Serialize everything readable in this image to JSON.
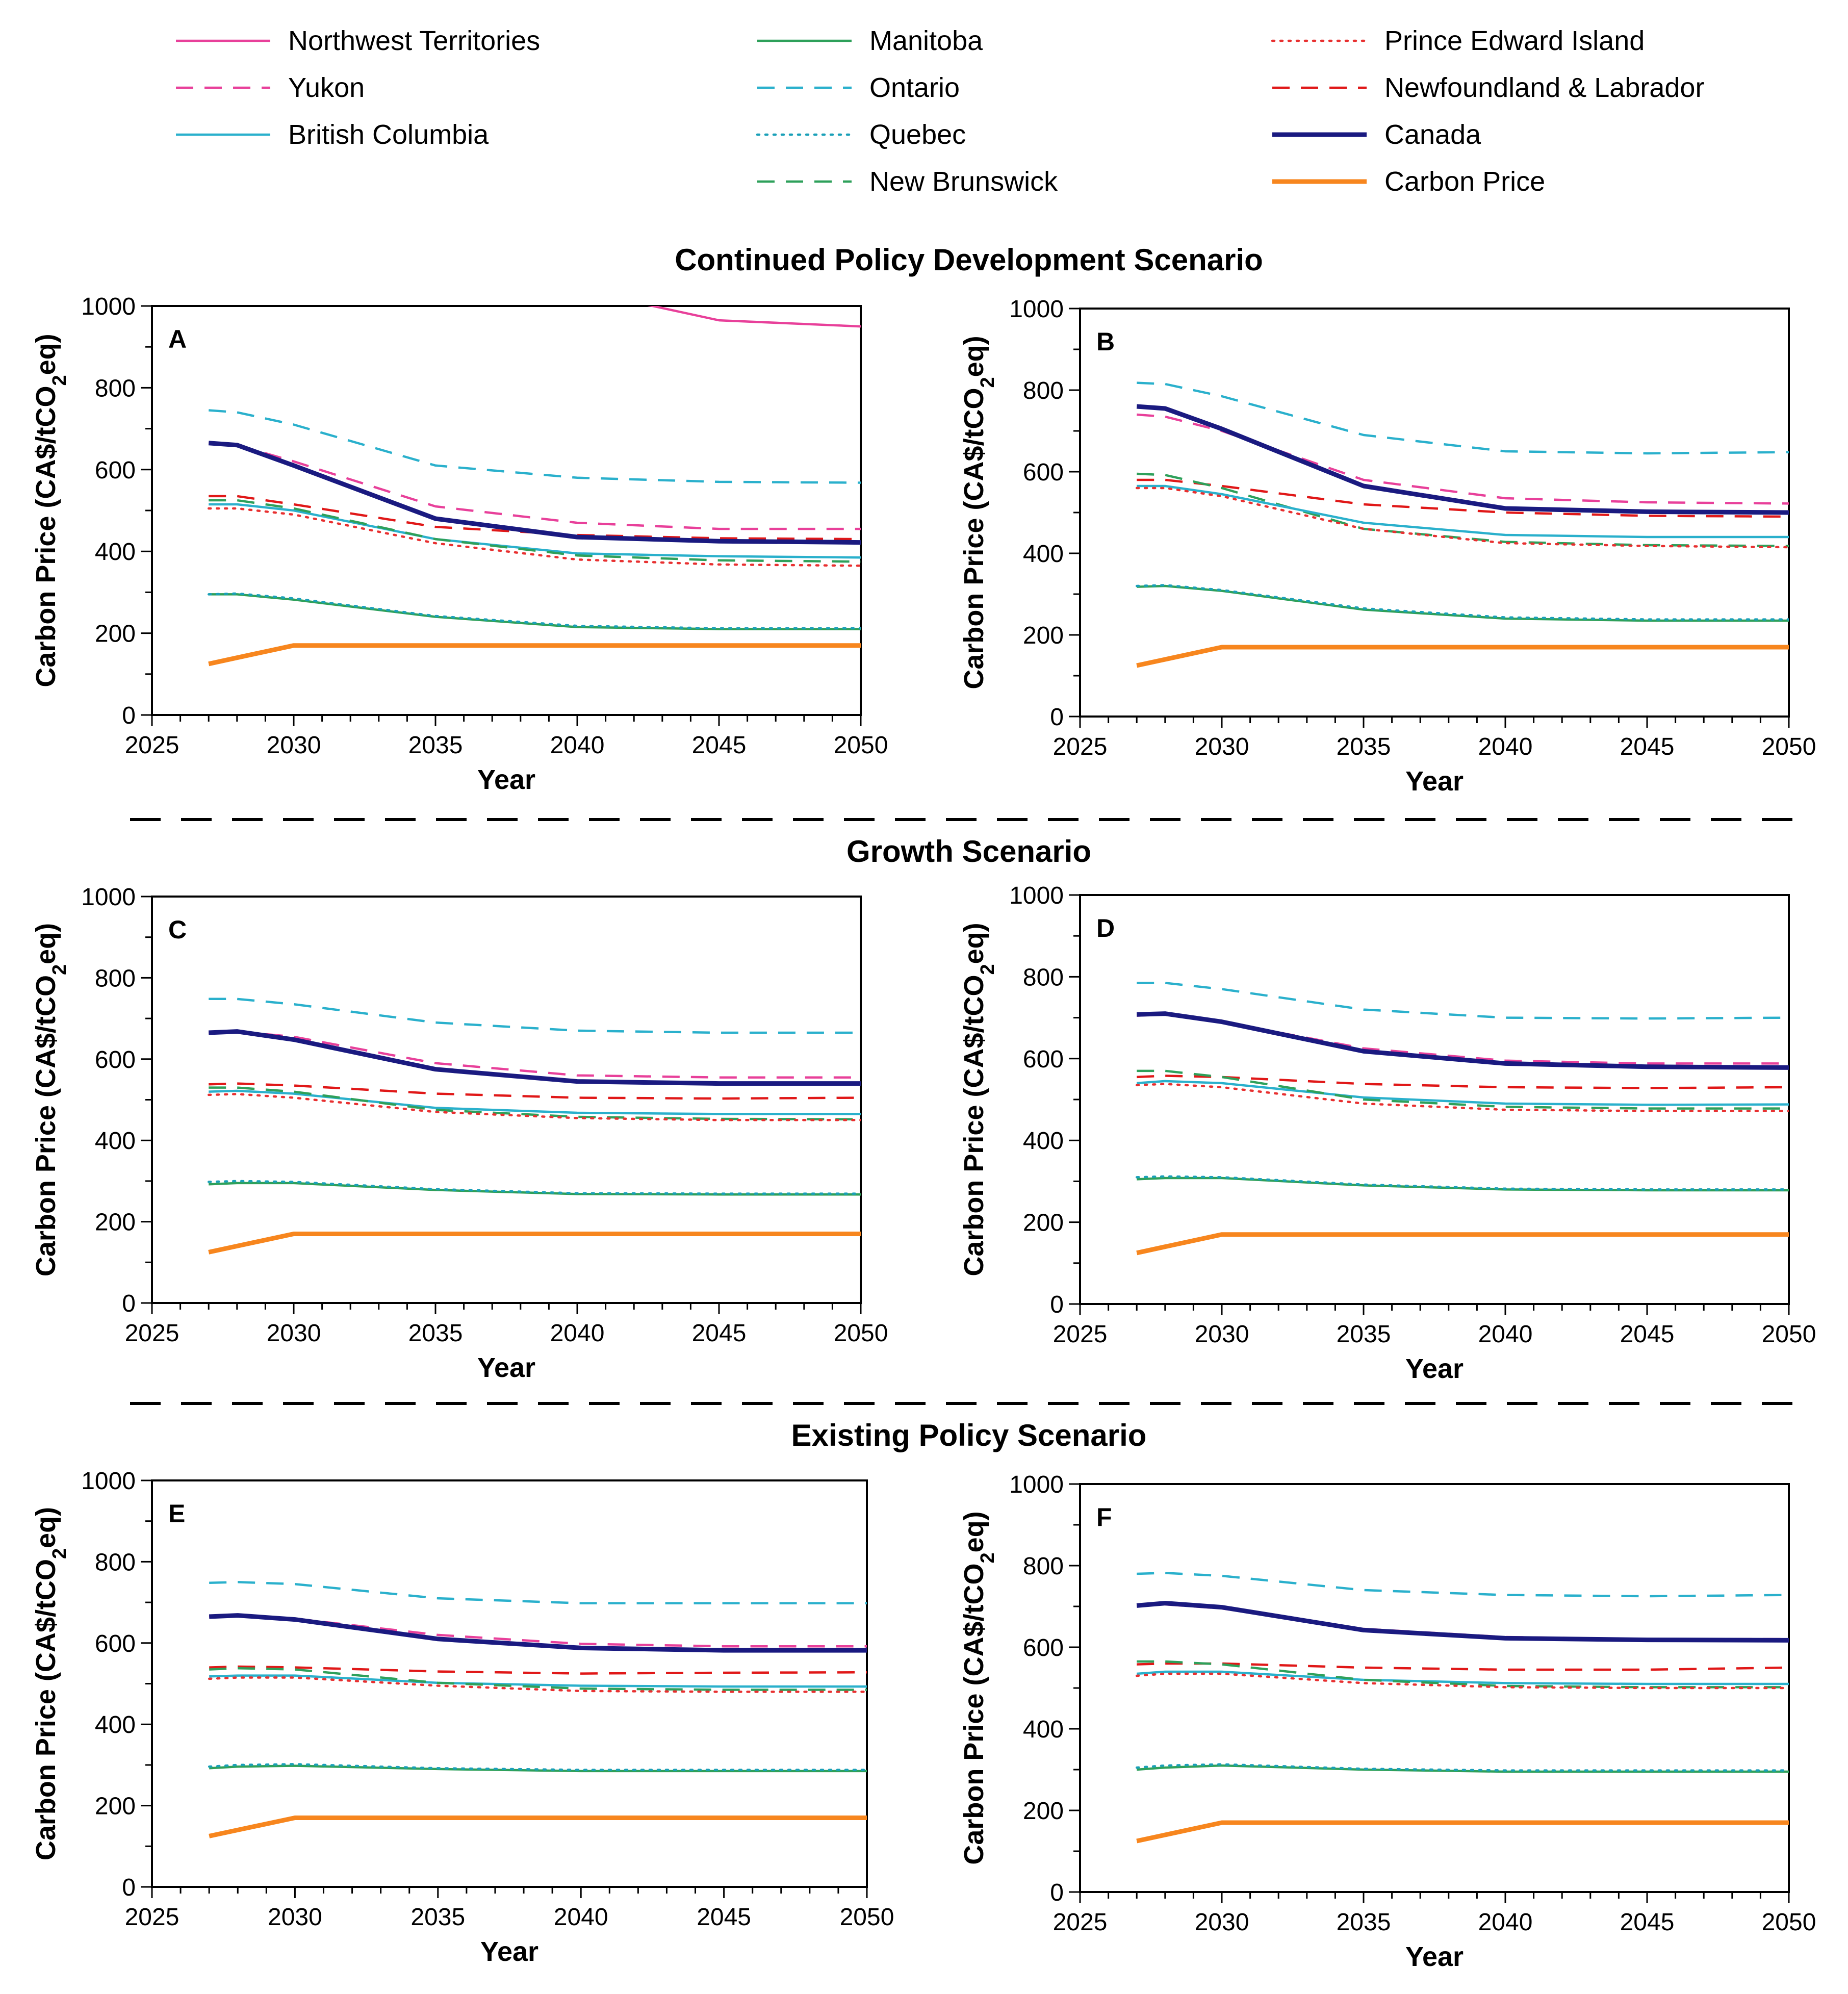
{
  "legend": [
    {
      "name": "Northwest Territories",
      "color": "#e8409a",
      "dash": "solid",
      "width": "thin"
    },
    {
      "name": "Yukon",
      "color": "#e8409a",
      "dash": "dashed",
      "width": "thin"
    },
    {
      "name": "British Columbia",
      "color": "#2ab0cc",
      "dash": "solid",
      "width": "thin"
    },
    {
      "name": "Manitoba",
      "color": "#2ea05a",
      "dash": "solid",
      "width": "thin"
    },
    {
      "name": "Ontario",
      "color": "#2ab0cc",
      "dash": "dashed",
      "width": "thin"
    },
    {
      "name": "Quebec",
      "color": "#1aa0b8",
      "dash": "dotted",
      "width": "thin"
    },
    {
      "name": "New Brunswick",
      "color": "#2ea05a",
      "dash": "dashed",
      "width": "thin"
    },
    {
      "name": "Prince Edward Island",
      "color": "#e83030",
      "dash": "dotted",
      "width": "thin"
    },
    {
      "name": "Newfoundland & Labrador",
      "color": "#e01818",
      "dash": "dashed",
      "width": "thin"
    },
    {
      "name": "Canada",
      "color": "#1a1a80",
      "dash": "solid",
      "width": "thick"
    },
    {
      "name": "Carbon Price",
      "color": "#f7861e",
      "dash": "solid",
      "width": "thick"
    }
  ],
  "scenario_titles": [
    "Continued Policy Development Scenario",
    "Growth Scenario",
    "Existing Policy Scenario"
  ],
  "axis": {
    "ylabel": "Carbon Price (CA$/tCO2eq)",
    "xlabel": "Year"
  },
  "chart_data": [
    {
      "panel": "A",
      "type": "line",
      "xlabel": "Year",
      "ylabel": "Carbon Price (CA$/tCO2eq)",
      "xlim": [
        2025,
        2050
      ],
      "ylim": [
        0,
        1000
      ],
      "x": [
        2027,
        2028,
        2030,
        2035,
        2040,
        2045,
        2050
      ],
      "series": [
        {
          "name": "Northwest Territories",
          "values": [
            null,
            null,
            null,
            null,
            null,
            965,
            950
          ]
        },
        {
          "name": "Yukon",
          "values": [
            665,
            660,
            620,
            510,
            470,
            455,
            455
          ]
        },
        {
          "name": "Ontario",
          "values": [
            745,
            740,
            710,
            610,
            580,
            570,
            568
          ]
        },
        {
          "name": "Canada",
          "values": [
            665,
            660,
            610,
            480,
            435,
            425,
            422
          ]
        },
        {
          "name": "Newfoundland & Labrador",
          "values": [
            535,
            535,
            515,
            460,
            440,
            432,
            430
          ]
        },
        {
          "name": "British Columbia",
          "values": [
            515,
            515,
            500,
            430,
            395,
            388,
            385
          ]
        },
        {
          "name": "New Brunswick",
          "values": [
            525,
            525,
            505,
            430,
            390,
            378,
            375
          ]
        },
        {
          "name": "Prince Edward Island",
          "values": [
            505,
            505,
            490,
            420,
            380,
            368,
            365
          ]
        },
        {
          "name": "Manitoba",
          "values": [
            295,
            295,
            282,
            240,
            215,
            210,
            210
          ]
        },
        {
          "name": "Quebec",
          "values": [
            295,
            297,
            285,
            242,
            218,
            212,
            212
          ]
        },
        {
          "name": "Carbon Price",
          "values": [
            125,
            140,
            170,
            170,
            170,
            170,
            170
          ]
        }
      ]
    },
    {
      "panel": "B",
      "type": "line",
      "xlabel": "Year",
      "ylabel": "Carbon Price (CA$/tCO2eq)",
      "xlim": [
        2025,
        2050
      ],
      "ylim": [
        0,
        1000
      ],
      "x": [
        2027,
        2028,
        2030,
        2035,
        2040,
        2045,
        2050
      ],
      "series": [
        {
          "name": "Ontario",
          "values": [
            818,
            815,
            785,
            690,
            650,
            645,
            648
          ]
        },
        {
          "name": "Yukon",
          "values": [
            740,
            735,
            700,
            580,
            535,
            525,
            522
          ]
        },
        {
          "name": "Canada",
          "values": [
            760,
            755,
            705,
            565,
            510,
            502,
            500
          ]
        },
        {
          "name": "Newfoundland & Labrador",
          "values": [
            580,
            580,
            565,
            520,
            500,
            492,
            490
          ]
        },
        {
          "name": "New Brunswick",
          "values": [
            595,
            592,
            560,
            460,
            428,
            420,
            418
          ]
        },
        {
          "name": "British Columbia",
          "values": [
            565,
            565,
            545,
            475,
            445,
            440,
            440
          ]
        },
        {
          "name": "Prince Edward Island",
          "values": [
            560,
            560,
            540,
            460,
            425,
            418,
            415
          ]
        },
        {
          "name": "Manitoba",
          "values": [
            318,
            320,
            308,
            262,
            240,
            235,
            235
          ]
        },
        {
          "name": "Quebec",
          "values": [
            320,
            322,
            310,
            265,
            243,
            238,
            238
          ]
        },
        {
          "name": "Carbon Price",
          "values": [
            125,
            140,
            170,
            170,
            170,
            170,
            170
          ]
        }
      ]
    },
    {
      "panel": "C",
      "type": "line",
      "xlabel": "Year",
      "ylabel": "Carbon Price (CA$/tCO2eq)",
      "xlim": [
        2025,
        2050
      ],
      "ylim": [
        0,
        1000
      ],
      "x": [
        2027,
        2028,
        2030,
        2035,
        2040,
        2045,
        2050
      ],
      "series": [
        {
          "name": "Ontario",
          "values": [
            748,
            748,
            735,
            690,
            670,
            665,
            665
          ]
        },
        {
          "name": "Yukon",
          "values": [
            665,
            668,
            655,
            590,
            560,
            555,
            555
          ]
        },
        {
          "name": "Canada",
          "values": [
            665,
            668,
            648,
            575,
            545,
            540,
            540
          ]
        },
        {
          "name": "Newfoundland & Labrador",
          "values": [
            538,
            540,
            535,
            515,
            505,
            503,
            505
          ]
        },
        {
          "name": "British Columbia",
          "values": [
            520,
            522,
            515,
            480,
            468,
            465,
            465
          ]
        },
        {
          "name": "New Brunswick",
          "values": [
            530,
            530,
            520,
            475,
            458,
            453,
            452
          ]
        },
        {
          "name": "Prince Edward Island",
          "values": [
            512,
            514,
            505,
            470,
            455,
            450,
            450
          ]
        },
        {
          "name": "Manitoba",
          "values": [
            292,
            295,
            295,
            278,
            268,
            267,
            267
          ]
        },
        {
          "name": "Quebec",
          "values": [
            298,
            300,
            298,
            280,
            270,
            269,
            269
          ]
        },
        {
          "name": "Carbon Price",
          "values": [
            125,
            140,
            170,
            170,
            170,
            170,
            170
          ]
        }
      ]
    },
    {
      "panel": "D",
      "type": "line",
      "xlabel": "Year",
      "ylabel": "Carbon Price (CA$/tCO2eq)",
      "xlim": [
        2025,
        2050
      ],
      "ylim": [
        0,
        1000
      ],
      "x": [
        2027,
        2028,
        2030,
        2035,
        2040,
        2045,
        2050
      ],
      "series": [
        {
          "name": "Ontario",
          "values": [
            785,
            785,
            770,
            720,
            700,
            698,
            700
          ]
        },
        {
          "name": "Yukon",
          "values": [
            705,
            708,
            690,
            625,
            595,
            588,
            588
          ]
        },
        {
          "name": "Canada",
          "values": [
            708,
            710,
            690,
            618,
            588,
            580,
            578
          ]
        },
        {
          "name": "Newfoundland & Labrador",
          "values": [
            555,
            558,
            555,
            538,
            530,
            528,
            530
          ]
        },
        {
          "name": "British Columbia",
          "values": [
            540,
            545,
            540,
            505,
            490,
            487,
            488
          ]
        },
        {
          "name": "New Brunswick",
          "values": [
            570,
            570,
            555,
            500,
            482,
            478,
            478
          ]
        },
        {
          "name": "Prince Edward Island",
          "values": [
            535,
            538,
            530,
            490,
            475,
            472,
            472
          ]
        },
        {
          "name": "Manitoba",
          "values": [
            305,
            308,
            308,
            290,
            280,
            278,
            278
          ]
        },
        {
          "name": "Quebec",
          "values": [
            310,
            312,
            310,
            292,
            282,
            280,
            280
          ]
        },
        {
          "name": "Carbon Price",
          "values": [
            125,
            140,
            170,
            170,
            170,
            170,
            170
          ]
        }
      ]
    },
    {
      "panel": "E",
      "type": "line",
      "xlabel": "Year",
      "ylabel": "Carbon Price (CA$/tCO2eq)",
      "xlim": [
        2025,
        2050
      ],
      "ylim": [
        0,
        1000
      ],
      "x": [
        2027,
        2028,
        2030,
        2035,
        2040,
        2045,
        2050
      ],
      "series": [
        {
          "name": "Ontario",
          "values": [
            748,
            750,
            745,
            710,
            698,
            698,
            698
          ]
        },
        {
          "name": "Yukon",
          "values": [
            665,
            668,
            660,
            620,
            598,
            592,
            592
          ]
        },
        {
          "name": "Canada",
          "values": [
            665,
            668,
            658,
            610,
            588,
            582,
            582
          ]
        },
        {
          "name": "Newfoundland & Labrador",
          "values": [
            540,
            542,
            540,
            530,
            525,
            527,
            528
          ]
        },
        {
          "name": "British Columbia",
          "values": [
            518,
            520,
            520,
            502,
            495,
            493,
            493
          ]
        },
        {
          "name": "New Brunswick",
          "values": [
            535,
            538,
            535,
            502,
            488,
            485,
            485
          ]
        },
        {
          "name": "Prince Edward Island",
          "values": [
            512,
            515,
            515,
            495,
            482,
            480,
            480
          ]
        },
        {
          "name": "Manitoba",
          "values": [
            292,
            296,
            298,
            290,
            285,
            285,
            285
          ]
        },
        {
          "name": "Quebec",
          "values": [
            296,
            300,
            302,
            292,
            288,
            288,
            288
          ]
        },
        {
          "name": "Carbon Price",
          "values": [
            125,
            140,
            170,
            170,
            170,
            170,
            170
          ]
        }
      ]
    },
    {
      "panel": "F",
      "type": "line",
      "xlabel": "Year",
      "ylabel": "Carbon Price (CA$/tCO2eq)",
      "xlim": [
        2025,
        2050
      ],
      "ylim": [
        0,
        1000
      ],
      "x": [
        2027,
        2028,
        2030,
        2035,
        2040,
        2045,
        2050
      ],
      "series": [
        {
          "name": "Ontario",
          "values": [
            780,
            782,
            775,
            740,
            728,
            725,
            728
          ]
        },
        {
          "name": "Yukon",
          "values": [
            702,
            705,
            695,
            645,
            625,
            620,
            620
          ]
        },
        {
          "name": "Canada",
          "values": [
            702,
            708,
            698,
            642,
            622,
            618,
            617
          ]
        },
        {
          "name": "Newfoundland & Labrador",
          "values": [
            558,
            560,
            560,
            550,
            545,
            545,
            550
          ]
        },
        {
          "name": "British Columbia",
          "values": [
            535,
            540,
            540,
            520,
            512,
            510,
            510
          ]
        },
        {
          "name": "New Brunswick",
          "values": [
            565,
            565,
            558,
            520,
            505,
            502,
            502
          ]
        },
        {
          "name": "Prince Edward Island",
          "values": [
            530,
            535,
            535,
            512,
            502,
            500,
            500
          ]
        },
        {
          "name": "Manitoba",
          "values": [
            300,
            305,
            310,
            300,
            295,
            295,
            295
          ]
        },
        {
          "name": "Quebec",
          "values": [
            305,
            310,
            313,
            302,
            298,
            298,
            298
          ]
        },
        {
          "name": "Carbon Price",
          "values": [
            125,
            140,
            170,
            170,
            170,
            170,
            170
          ]
        }
      ]
    }
  ]
}
